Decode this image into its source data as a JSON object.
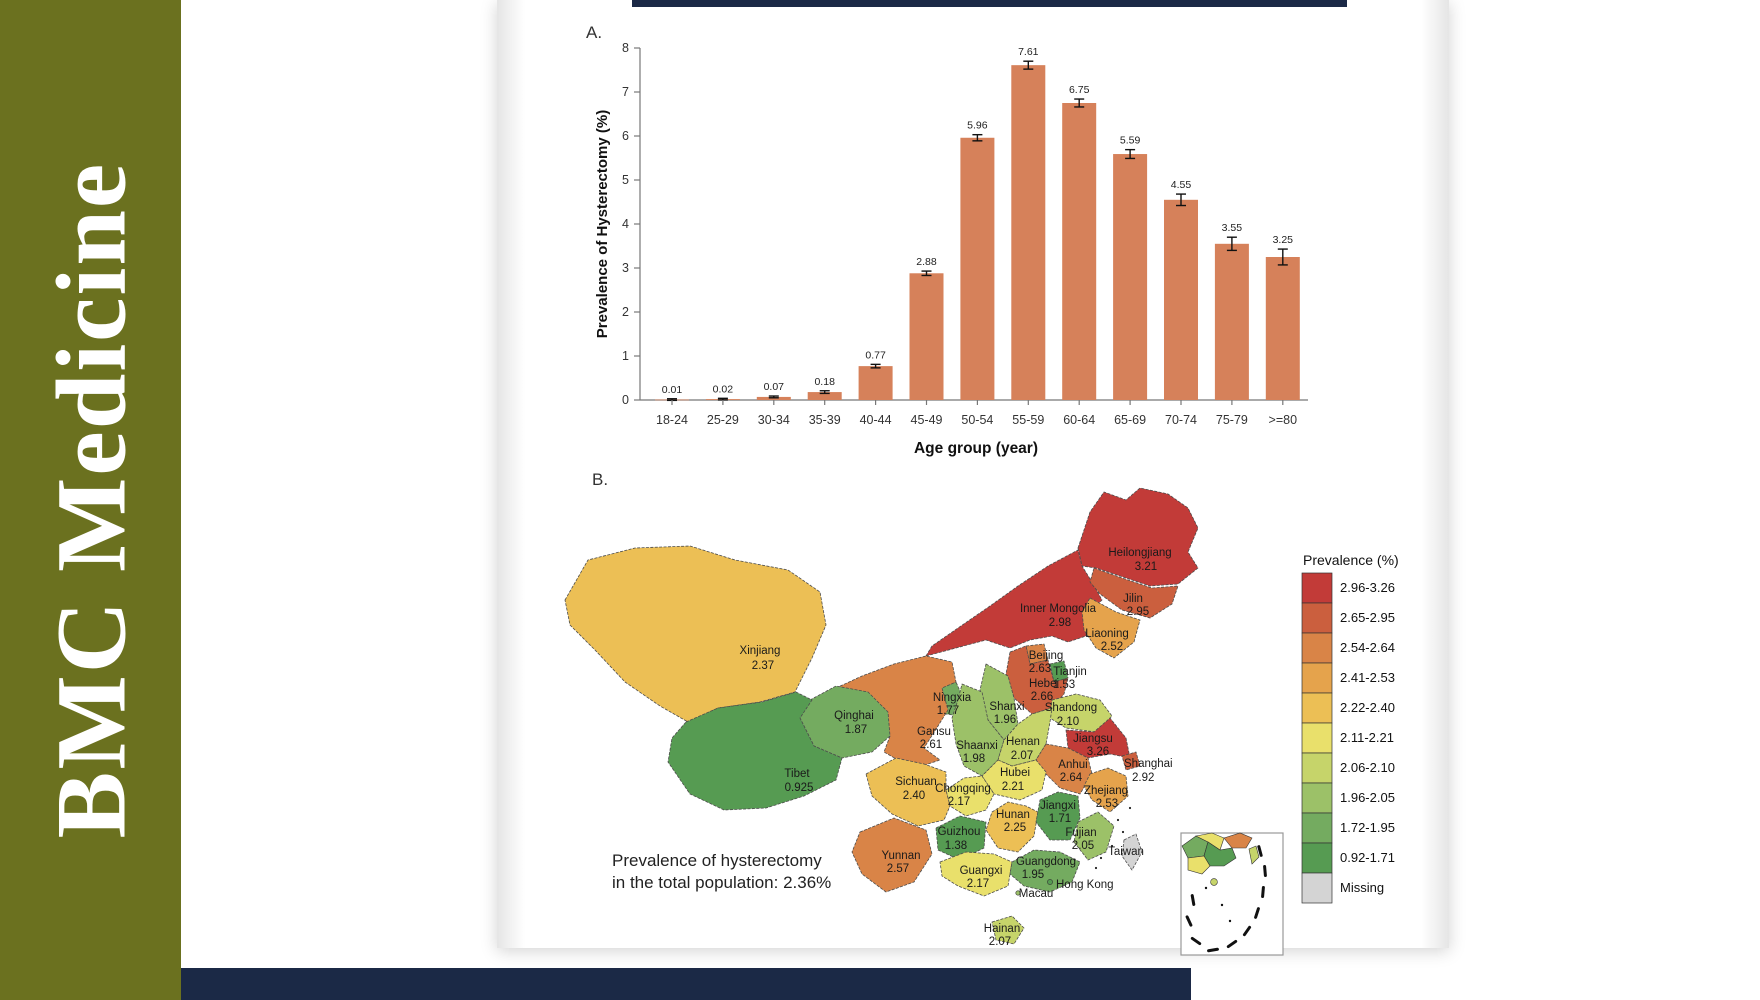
{
  "brand": {
    "journal": "BMC Medicine"
  },
  "colors": {
    "sidebar_olive": "#6b711f",
    "banner_navy": "#1b2946",
    "bar_fill": "#d6815a",
    "map_border": "#4d4d4d",
    "legend_bins": [
      "#c23b38",
      "#cb5f3e",
      "#d98447",
      "#e5a34c",
      "#ecbf55",
      "#e9e06b",
      "#c6d46a",
      "#9cc168",
      "#74ab60",
      "#569b52",
      "#d4d4d4"
    ]
  },
  "panel_a": {
    "label": "A.",
    "chart_data": {
      "type": "bar",
      "categories": [
        "18-24",
        "25-29",
        "30-34",
        "35-39",
        "40-44",
        "45-49",
        "50-54",
        "55-59",
        "60-64",
        "65-69",
        "70-74",
        "75-79",
        ">=80"
      ],
      "values": [
        0.01,
        0.02,
        0.07,
        0.18,
        0.77,
        2.88,
        5.96,
        7.61,
        6.75,
        5.59,
        4.55,
        3.55,
        3.25
      ],
      "errors": [
        0.008,
        0.01,
        0.02,
        0.03,
        0.04,
        0.05,
        0.07,
        0.09,
        0.09,
        0.1,
        0.13,
        0.15,
        0.18
      ],
      "title": "",
      "xlabel": "Age group (year)",
      "ylabel": "Prevalence of Hysterectomy (%)",
      "ylim": [
        0,
        8
      ],
      "yticks": [
        0,
        1,
        2,
        3,
        4,
        5,
        6,
        7,
        8
      ],
      "grid": false,
      "legend_position": "none"
    }
  },
  "panel_b": {
    "label": "B.",
    "annotation_line1": "Prevalence of hysterectomy",
    "annotation_line2": "in the total population: 2.36%",
    "legend": {
      "title": "Prevalence (%)",
      "items": [
        {
          "label": "2.96-3.26",
          "color": "#c23b38"
        },
        {
          "label": "2.65-2.95",
          "color": "#cb5f3e"
        },
        {
          "label": "2.54-2.64",
          "color": "#d98447"
        },
        {
          "label": "2.41-2.53",
          "color": "#e5a34c"
        },
        {
          "label": "2.22-2.40",
          "color": "#ecbf55"
        },
        {
          "label": "2.11-2.21",
          "color": "#e9e06b"
        },
        {
          "label": "2.06-2.10",
          "color": "#c6d46a"
        },
        {
          "label": "1.96-2.05",
          "color": "#9cc168"
        },
        {
          "label": "1.72-1.95",
          "color": "#74ab60"
        },
        {
          "label": "0.92-1.71",
          "color": "#569b52"
        },
        {
          "label": "Missing",
          "color": "#d4d4d4"
        }
      ]
    },
    "provinces": [
      {
        "name": "Heilongjiang",
        "value": "3.21",
        "bin": 0
      },
      {
        "name": "Inner Mongolia",
        "value": "2.98",
        "bin": 0
      },
      {
        "name": "Jilin",
        "value": "2.95",
        "bin": 1
      },
      {
        "name": "Liaoning",
        "value": "2.52",
        "bin": 3
      },
      {
        "name": "Beijing",
        "value": "2.63",
        "bin": 2
      },
      {
        "name": "Tianjin",
        "value": "1.53",
        "bin": 9
      },
      {
        "name": "Hebei",
        "value": "2.66",
        "bin": 1
      },
      {
        "name": "Shanxi",
        "value": "1.96",
        "bin": 7
      },
      {
        "name": "Shandong",
        "value": "2.10",
        "bin": 6
      },
      {
        "name": "Ningxia",
        "value": "1.77",
        "bin": 8
      },
      {
        "name": "Gansu",
        "value": "2.61",
        "bin": 2
      },
      {
        "name": "Shaanxi",
        "value": "1.98",
        "bin": 7
      },
      {
        "name": "Henan",
        "value": "2.07",
        "bin": 6
      },
      {
        "name": "Jiangsu",
        "value": "3.26",
        "bin": 0
      },
      {
        "name": "Shanghai",
        "value": "2.92",
        "bin": 1
      },
      {
        "name": "Anhui",
        "value": "2.64",
        "bin": 2
      },
      {
        "name": "Zhejiang",
        "value": "2.53",
        "bin": 3
      },
      {
        "name": "Hubei",
        "value": "2.21",
        "bin": 5
      },
      {
        "name": "Chongqing",
        "value": "2.17",
        "bin": 5
      },
      {
        "name": "Sichuan",
        "value": "2.40",
        "bin": 4
      },
      {
        "name": "Hunan",
        "value": "2.25",
        "bin": 4
      },
      {
        "name": "Jiangxi",
        "value": "1.71",
        "bin": 9
      },
      {
        "name": "Guizhou",
        "value": "1.38",
        "bin": 9
      },
      {
        "name": "Fujian",
        "value": "2.05",
        "bin": 7
      },
      {
        "name": "Yunnan",
        "value": "2.57",
        "bin": 2
      },
      {
        "name": "Guangxi",
        "value": "2.17",
        "bin": 5
      },
      {
        "name": "Guangdong",
        "value": "1.95",
        "bin": 8
      },
      {
        "name": "Hainan",
        "value": "2.07",
        "bin": 6
      },
      {
        "name": "Xinjiang",
        "value": "2.37",
        "bin": 4
      },
      {
        "name": "Qinghai",
        "value": "1.87",
        "bin": 8
      },
      {
        "name": "Tibet",
        "value": "0.925",
        "bin": 9
      },
      {
        "name": "Taiwan",
        "value": "",
        "bin": 10
      }
    ],
    "territory_labels": [
      "Hong Kong",
      "Macau"
    ]
  }
}
